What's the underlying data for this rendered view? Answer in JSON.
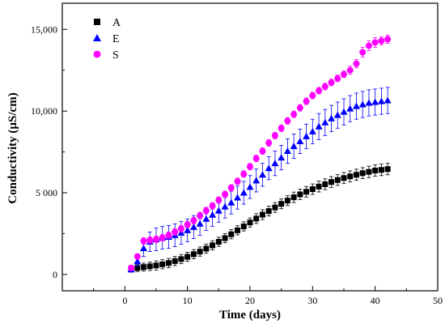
{
  "chart_data": {
    "type": "scatter",
    "xlabel": "Time (days)",
    "ylabel": "Conductivity (µS/cm)",
    "xlim": [
      -10,
      50
    ],
    "ylim": [
      -1000,
      16600
    ],
    "x_ticks": [
      0,
      10,
      20,
      30,
      40,
      50
    ],
    "x_tick_labels": [
      "0",
      "10",
      "20",
      "30",
      "40",
      "50"
    ],
    "y_ticks": [
      0,
      5000,
      10000,
      15000
    ],
    "y_tick_labels": [
      "0",
      "5 000",
      "10,000",
      "15,000"
    ],
    "grid": false,
    "legend_position": "top-left",
    "series": [
      {
        "name": "A",
        "marker": "square",
        "color": "#000000",
        "x": [
          1,
          2,
          3,
          4,
          5,
          6,
          7,
          8,
          9,
          10,
          11,
          12,
          13,
          14,
          15,
          16,
          17,
          18,
          19,
          20,
          21,
          22,
          23,
          24,
          25,
          26,
          27,
          28,
          29,
          30,
          31,
          32,
          33,
          34,
          35,
          36,
          37,
          38,
          39,
          40,
          41,
          42
        ],
        "y": [
          350,
          400,
          450,
          500,
          550,
          620,
          700,
          820,
          940,
          1080,
          1240,
          1400,
          1580,
          1780,
          2000,
          2220,
          2460,
          2700,
          2940,
          3180,
          3420,
          3660,
          3880,
          4100,
          4320,
          4520,
          4720,
          4900,
          5060,
          5220,
          5380,
          5520,
          5660,
          5780,
          5900,
          6000,
          6100,
          6200,
          6280,
          6360,
          6400,
          6450
        ],
        "err": [
          200,
          220,
          240,
          260,
          280,
          280,
          280,
          280,
          280,
          280,
          280,
          280,
          280,
          280,
          280,
          280,
          280,
          280,
          280,
          280,
          300,
          300,
          300,
          300,
          300,
          300,
          320,
          320,
          320,
          320,
          330,
          330,
          330,
          330,
          340,
          340,
          340,
          340,
          350,
          350,
          350,
          350
        ]
      },
      {
        "name": "E",
        "marker": "triangle",
        "color": "#0000ff",
        "x": [
          1,
          2,
          3,
          4,
          5,
          6,
          7,
          8,
          9,
          10,
          11,
          12,
          13,
          14,
          15,
          16,
          17,
          18,
          19,
          20,
          21,
          22,
          23,
          24,
          25,
          26,
          27,
          28,
          29,
          30,
          31,
          32,
          33,
          34,
          35,
          36,
          37,
          38,
          39,
          40,
          41,
          42
        ],
        "y": [
          300,
          800,
          1600,
          2000,
          2150,
          2250,
          2300,
          2400,
          2550,
          2700,
          2900,
          3100,
          3400,
          3650,
          3900,
          4150,
          4400,
          4700,
          5000,
          5350,
          5750,
          6100,
          6500,
          6800,
          7150,
          7550,
          7850,
          8150,
          8450,
          8750,
          9050,
          9300,
          9550,
          9750,
          9950,
          10150,
          10300,
          10400,
          10500,
          10550,
          10600,
          10650
        ],
        "err": [
          150,
          300,
          500,
          600,
          700,
          700,
          700,
          700,
          700,
          700,
          700,
          700,
          700,
          700,
          700,
          700,
          700,
          700,
          700,
          700,
          700,
          700,
          700,
          750,
          750,
          750,
          750,
          750,
          750,
          750,
          800,
          800,
          800,
          800,
          800,
          800,
          800,
          800,
          800,
          800,
          800,
          800
        ]
      },
      {
        "name": "S",
        "marker": "circle",
        "color": "#ff00ff",
        "x": [
          1,
          2,
          3,
          4,
          5,
          6,
          7,
          8,
          9,
          10,
          11,
          12,
          13,
          14,
          15,
          16,
          17,
          18,
          19,
          20,
          21,
          22,
          23,
          24,
          25,
          26,
          27,
          28,
          29,
          30,
          31,
          32,
          33,
          34,
          35,
          36,
          37,
          38,
          39,
          40,
          41,
          42
        ],
        "y": [
          400,
          1100,
          2050,
          2100,
          2150,
          2250,
          2400,
          2600,
          2800,
          3050,
          3300,
          3600,
          3900,
          4200,
          4550,
          4900,
          5300,
          5700,
          6150,
          6600,
          7100,
          7550,
          8050,
          8500,
          8950,
          9400,
          9800,
          10200,
          10600,
          10950,
          11250,
          11500,
          11750,
          12000,
          12250,
          12500,
          12900,
          13600,
          14000,
          14200,
          14300,
          14400
        ],
        "err": [
          100,
          150,
          200,
          200,
          200,
          200,
          200,
          200,
          200,
          200,
          200,
          200,
          200,
          200,
          200,
          200,
          200,
          200,
          200,
          200,
          200,
          200,
          200,
          200,
          200,
          200,
          200,
          200,
          200,
          200,
          200,
          200,
          200,
          200,
          200,
          250,
          250,
          300,
          300,
          300,
          250,
          250
        ]
      }
    ]
  }
}
